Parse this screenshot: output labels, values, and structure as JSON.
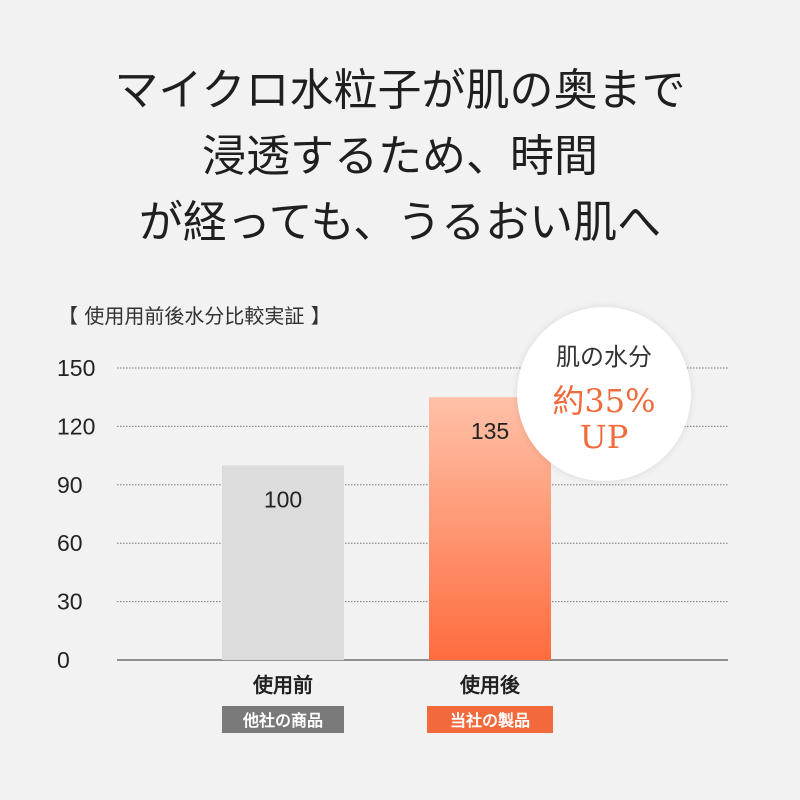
{
  "headline": {
    "line1": "マイクロ水粒子が肌の奥まで",
    "line2": "浸透するため、時間",
    "line3": "が経っても、うるおい肌へ"
  },
  "caption": "【 使用用前後水分比較実証 】",
  "badge": {
    "line1": "肌の水分",
    "line2": "約35%",
    "line3": "UP"
  },
  "colors": {
    "bar_before": "#dcdcdc",
    "bar_after_top": "#ffc1a8",
    "bar_after_bottom": "#ff6c3e",
    "tag_before": "#7a7a7a",
    "tag_after": "#f26a3c",
    "accent": "#f06a3c"
  },
  "chart_data": {
    "type": "bar",
    "categories": [
      "使用前",
      "使用後"
    ],
    "values": [
      100,
      135
    ],
    "value_labels": [
      "100",
      "135"
    ],
    "tags": [
      "他社の商品",
      "当社の製品"
    ],
    "ylim": [
      0,
      150
    ],
    "yticks": [
      0,
      30,
      60,
      90,
      120,
      150
    ],
    "ytick_labels": [
      "0",
      "30",
      "60",
      "90",
      "120",
      "150"
    ],
    "grid": true
  }
}
